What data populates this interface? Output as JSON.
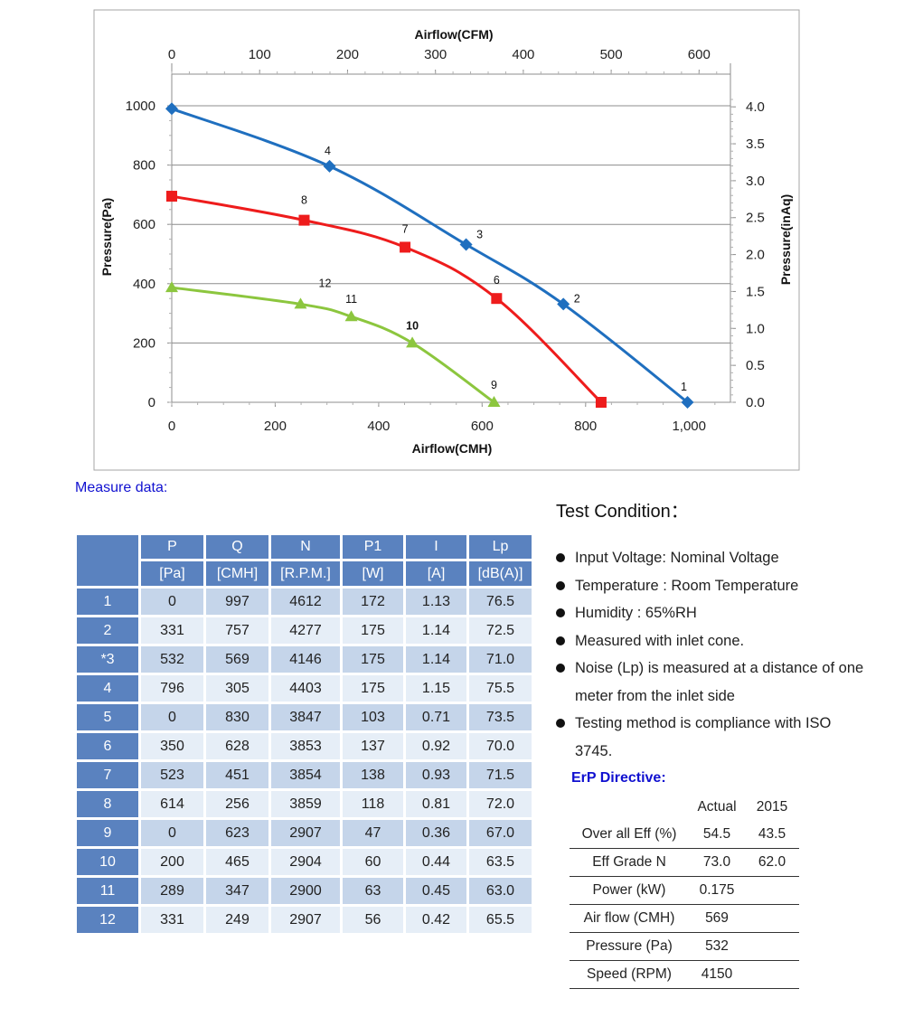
{
  "chart_data": {
    "type": "line",
    "x_bottom_label": "Airflow(CMH)",
    "x_top_label": "Airflow(CFM)",
    "y_left_label": "Pressure(Pa)",
    "y_right_label": "Pressure(inAq)",
    "x_bottom_ticks": [
      "0",
      "200",
      "400",
      "600",
      "800",
      "1,000"
    ],
    "x_top_ticks": [
      "0",
      "100",
      "200",
      "300",
      "400",
      "500",
      "600"
    ],
    "y_left_ticks": [
      "0",
      "200",
      "400",
      "600",
      "800",
      "1000"
    ],
    "y_right_ticks": [
      "0.0",
      "0.5",
      "1.0",
      "1.5",
      "2.0",
      "2.5",
      "3.0",
      "3.5",
      "4.0"
    ],
    "xlim": [
      0,
      1080
    ],
    "ylim": [
      0,
      1000
    ],
    "grid": true,
    "series": [
      {
        "color": "#1f6fbf",
        "marker": "diamond",
        "points": [
          {
            "x": 0,
            "y": 990,
            "label": ""
          },
          {
            "x": 305,
            "y": 796,
            "label": "4"
          },
          {
            "x": 569,
            "y": 532,
            "label": "3"
          },
          {
            "x": 757,
            "y": 331,
            "label": "2"
          },
          {
            "x": 997,
            "y": 0,
            "label": "1"
          }
        ]
      },
      {
        "color": "#ee1c1c",
        "marker": "square",
        "points": [
          {
            "x": 0,
            "y": 695,
            "label": ""
          },
          {
            "x": 256,
            "y": 614,
            "label": "8"
          },
          {
            "x": 451,
            "y": 523,
            "label": "7"
          },
          {
            "x": 628,
            "y": 350,
            "label": "6"
          },
          {
            "x": 830,
            "y": 0,
            "label": ""
          }
        ]
      },
      {
        "color": "#8cc63e",
        "marker": "triangle",
        "points": [
          {
            "x": 0,
            "y": 387,
            "label": ""
          },
          {
            "x": 249,
            "y": 331,
            "label": "12"
          },
          {
            "x": 347,
            "y": 289,
            "label": "11"
          },
          {
            "x": 465,
            "y": 200,
            "label": "10"
          },
          {
            "x": 623,
            "y": 0,
            "label": "9"
          }
        ]
      }
    ]
  },
  "measure": {
    "title": "Measure data:",
    "header_top": [
      "P",
      "Q",
      "N",
      "P1",
      "I",
      "Lp"
    ],
    "header_units": [
      "[Pa]",
      "[CMH]",
      "[R.P.M.]",
      "[W]",
      "[A]",
      "[dB(A)]"
    ],
    "rows": [
      [
        "1",
        "0",
        "997",
        "4612",
        "172",
        "1.13",
        "76.5"
      ],
      [
        "2",
        "331",
        "757",
        "4277",
        "175",
        "1.14",
        "72.5"
      ],
      [
        "*3",
        "532",
        "569",
        "4146",
        "175",
        "1.14",
        "71.0"
      ],
      [
        "4",
        "796",
        "305",
        "4403",
        "175",
        "1.15",
        "75.5"
      ],
      [
        "5",
        "0",
        "830",
        "3847",
        "103",
        "0.71",
        "73.5"
      ],
      [
        "6",
        "350",
        "628",
        "3853",
        "137",
        "0.92",
        "70.0"
      ],
      [
        "7",
        "523",
        "451",
        "3854",
        "138",
        "0.93",
        "71.5"
      ],
      [
        "8",
        "614",
        "256",
        "3859",
        "118",
        "0.81",
        "72.0"
      ],
      [
        "9",
        "0",
        "623",
        "2907",
        "47",
        "0.36",
        "67.0"
      ],
      [
        "10",
        "200",
        "465",
        "2904",
        "60",
        "0.44",
        "63.5"
      ],
      [
        "11",
        "289",
        "347",
        "2900",
        "63",
        "0.45",
        "63.0"
      ],
      [
        "12",
        "331",
        "249",
        "2907",
        "56",
        "0.42",
        "65.5"
      ]
    ]
  },
  "test_condition": {
    "title": "Test Condition：",
    "items": [
      "Input Voltage: Nominal Voltage",
      "Temperature : Room Temperature",
      "Humidity : 65%RH",
      "Measured with inlet cone.",
      "Noise (Lp) is measured at a distance of one meter from the inlet side",
      "Testing method is compliance with ISO 3745."
    ]
  },
  "erp": {
    "title": "ErP Directive:",
    "col_actual": "Actual",
    "col_2015": "2015",
    "rows": [
      {
        "label": "Over all Eff (%)",
        "actual": "54.5",
        "y2015": "43.5"
      },
      {
        "label": "Eff Grade N",
        "actual": "73.0",
        "y2015": "62.0"
      },
      {
        "label": "Power (kW)",
        "actual": "0.175",
        "y2015": ""
      },
      {
        "label": "Air flow (CMH)",
        "actual": "569",
        "y2015": ""
      },
      {
        "label": "Pressure (Pa)",
        "actual": "532",
        "y2015": ""
      },
      {
        "label": "Speed (RPM)",
        "actual": "4150",
        "y2015": ""
      }
    ]
  }
}
